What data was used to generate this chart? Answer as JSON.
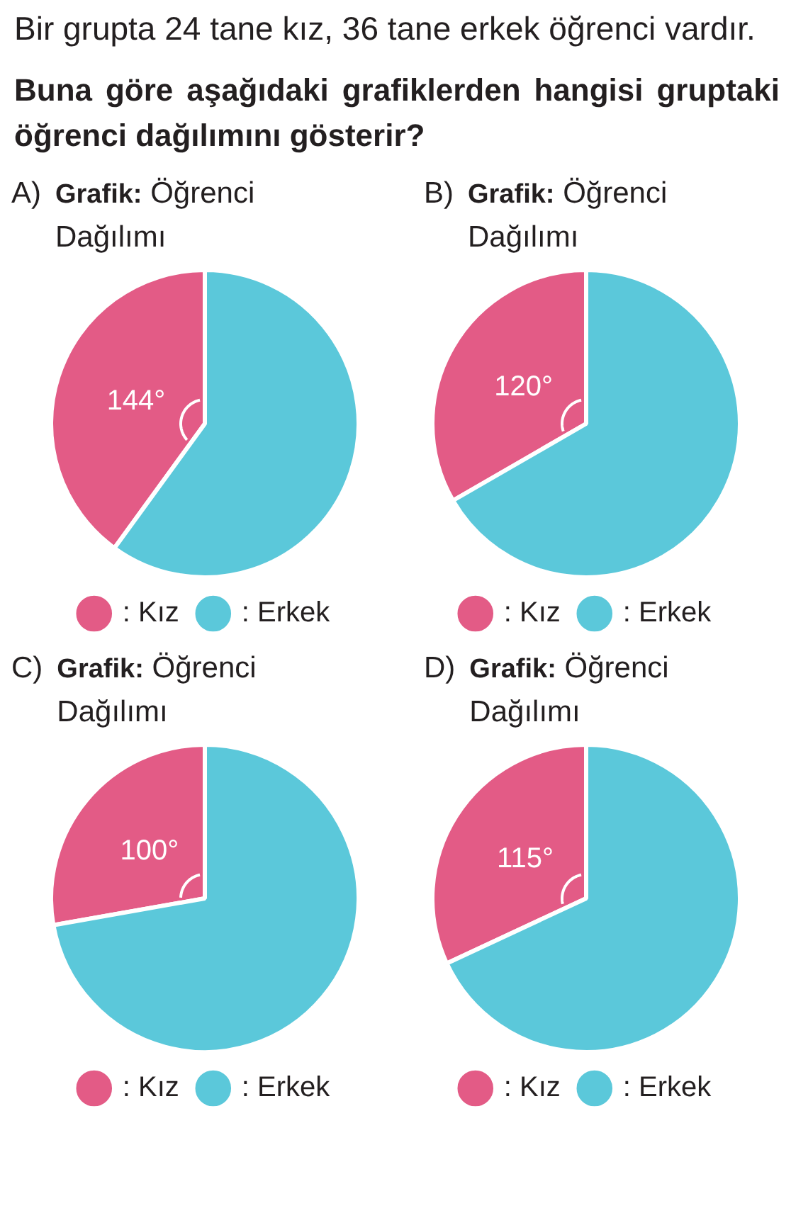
{
  "chart_data": [
    {
      "type": "other",
      "title": "Bir grupta 24 tane kız, 36 tane erkek öğrenci vardır.",
      "subtitle": "Buna göre aşağıdaki grafiklerden hangisi gruptaki öğrenci dağılımını gösterir?"
    },
    {
      "type": "pie",
      "title": "Grafik: Öğrenci Dağılımı",
      "annotations": [
        "A)"
      ],
      "categories": [
        ": Kız",
        ": Erkek"
      ],
      "values": [
        144,
        216
      ],
      "value_labels": [
        "144°",
        null
      ],
      "colors": [
        "#e35b86",
        "#5bc8da"
      ],
      "legend": "bottom"
    },
    {
      "type": "pie",
      "title": "Grafik: Öğrenci Dağılımı",
      "annotations": [
        "B)"
      ],
      "categories": [
        ": Kız",
        ": Erkek"
      ],
      "values": [
        120,
        240
      ],
      "value_labels": [
        "120°",
        null
      ],
      "colors": [
        "#e35b86",
        "#5bc8da"
      ],
      "legend": "bottom"
    },
    {
      "type": "pie",
      "title": "Grafik: Öğrenci Dağılımı",
      "annotations": [
        "C)"
      ],
      "categories": [
        ": Kız",
        ": Erkek"
      ],
      "values": [
        100,
        260
      ],
      "value_labels": [
        "100°",
        null
      ],
      "colors": [
        "#e35b86",
        "#5bc8da"
      ],
      "legend": "bottom"
    },
    {
      "type": "pie",
      "title": "Grafik: Öğrenci Dağılımı",
      "annotations": [
        "D)"
      ],
      "categories": [
        ": Kız",
        ": Erkek"
      ],
      "values": [
        115,
        245
      ],
      "value_labels": [
        "115°",
        null
      ],
      "colors": [
        "#e35b86",
        "#5bc8da"
      ],
      "legend": "bottom"
    }
  ]
}
